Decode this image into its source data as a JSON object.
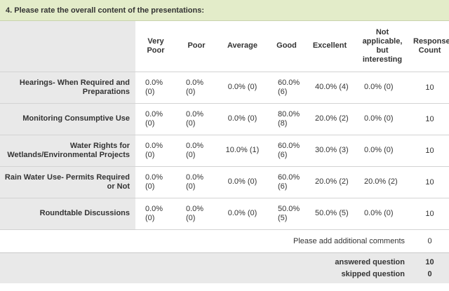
{
  "question": {
    "title": "4. Please rate the overall content of the presentations:"
  },
  "columns": [
    "Very Poor",
    "Poor",
    "Average",
    "Good",
    "Excellent",
    "Not applicable, but interesting",
    "Response Count"
  ],
  "rows": [
    {
      "label": "Hearings- When Required and Preparations",
      "cells": [
        "0.0% (0)",
        "0.0% (0)",
        "0.0% (0)",
        "60.0% (6)",
        "40.0% (4)",
        "0.0% (0)"
      ],
      "count": "10"
    },
    {
      "label": "Monitoring Consumptive Use",
      "cells": [
        "0.0% (0)",
        "0.0% (0)",
        "0.0% (0)",
        "80.0% (8)",
        "20.0% (2)",
        "0.0% (0)"
      ],
      "count": "10"
    },
    {
      "label": "Water Rights for Wetlands/Environmental Projects",
      "cells": [
        "0.0% (0)",
        "0.0% (0)",
        "10.0% (1)",
        "60.0% (6)",
        "30.0% (3)",
        "0.0% (0)"
      ],
      "count": "10"
    },
    {
      "label": "Rain Water Use- Permits Required or Not",
      "cells": [
        "0.0% (0)",
        "0.0% (0)",
        "0.0% (0)",
        "60.0% (6)",
        "20.0% (2)",
        "20.0% (2)"
      ],
      "count": "10"
    },
    {
      "label": "Roundtable Discussions",
      "cells": [
        "0.0% (0)",
        "0.0% (0)",
        "0.0% (0)",
        "50.0% (5)",
        "50.0% (5)",
        "0.0% (0)"
      ],
      "count": "10"
    }
  ],
  "comments": {
    "label": "Please add additional comments",
    "count": "0"
  },
  "summary": {
    "answered_label": "answered question",
    "answered_count": "10",
    "skipped_label": "skipped question",
    "skipped_count": "0"
  }
}
